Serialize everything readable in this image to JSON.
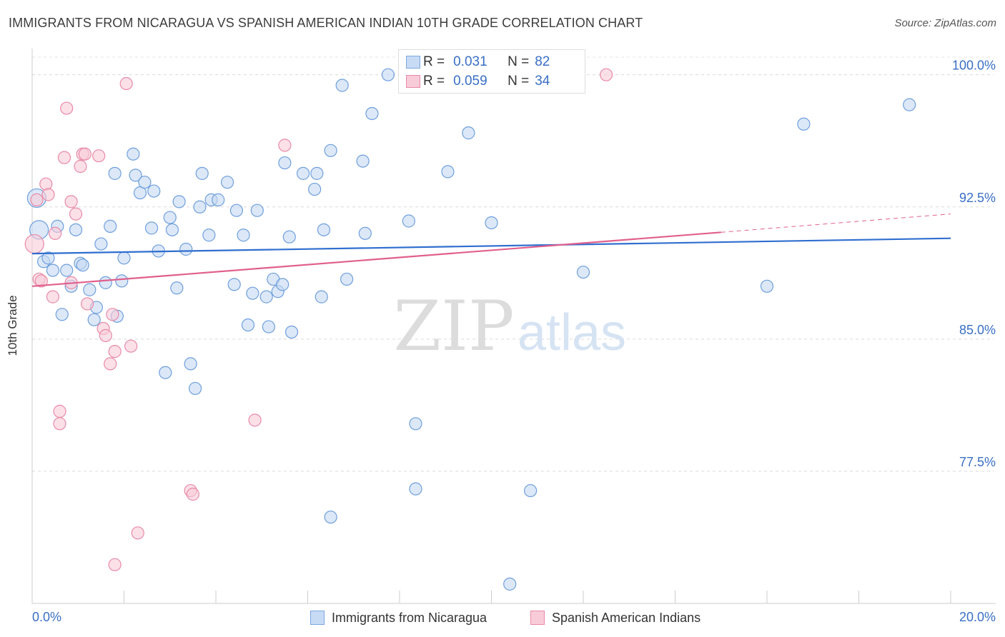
{
  "header": {
    "title": "IMMIGRANTS FROM NICARAGUA VS SPANISH AMERICAN INDIAN 10TH GRADE CORRELATION CHART",
    "source": "Source: ZipAtlas.com"
  },
  "watermark": {
    "zip": "ZIP",
    "atlas": "atlas"
  },
  "legend": {
    "rows": [
      {
        "r_label": "R =",
        "r_value": "0.031",
        "n_label": "N =",
        "n_value": "82",
        "color": "#7aa7e0",
        "fill": "#c8dbf5"
      },
      {
        "r_label": "R =",
        "r_value": "0.059",
        "n_label": "N =",
        "n_value": "34",
        "color": "#e88aa8",
        "fill": "#f8cbd9"
      }
    ]
  },
  "bottom_legend": {
    "items": [
      {
        "label": "Immigrants from Nicaragua"
      },
      {
        "label": "Spanish American Indians"
      }
    ]
  },
  "chart_data": {
    "type": "scatter",
    "title": "IMMIGRANTS FROM NICARAGUA VS SPANISH AMERICAN INDIAN 10TH GRADE CORRELATION CHART",
    "xlabel": "",
    "ylabel": "10th Grade",
    "xlim": [
      0.0,
      20.0
    ],
    "ylim": [
      70.0,
      101.0
    ],
    "x_tick_labels": [
      "0.0%",
      "20.0%"
    ],
    "y_ticks": [
      100.0,
      92.5,
      85.0,
      77.5
    ],
    "y_tick_labels": [
      "100.0%",
      "92.5%",
      "85.0%",
      "77.5%"
    ],
    "grid": true,
    "series": [
      {
        "name": "Immigrants from Nicaragua",
        "color": "#6f9fdc",
        "fill": "#c5d9f3",
        "trend": {
          "x": [
            0.0,
            20.0
          ],
          "y": [
            89.85,
            90.72
          ],
          "color": "#2f6ecf"
        },
        "points": [
          [
            0.1,
            93.0
          ],
          [
            0.15,
            91.2
          ],
          [
            0.25,
            89.4
          ],
          [
            0.35,
            89.6
          ],
          [
            0.45,
            88.9
          ],
          [
            0.55,
            91.4
          ],
          [
            0.65,
            86.4
          ],
          [
            0.75,
            88.9
          ],
          [
            0.85,
            88.0
          ],
          [
            0.95,
            91.2
          ],
          [
            1.05,
            89.3
          ],
          [
            1.1,
            89.2
          ],
          [
            1.25,
            87.8
          ],
          [
            1.35,
            86.1
          ],
          [
            1.4,
            86.8
          ],
          [
            1.5,
            90.4
          ],
          [
            1.6,
            88.2
          ],
          [
            1.7,
            91.4
          ],
          [
            1.8,
            94.4
          ],
          [
            1.85,
            86.3
          ],
          [
            1.95,
            88.3
          ],
          [
            2.0,
            89.6
          ],
          [
            2.2,
            95.5
          ],
          [
            2.25,
            94.3
          ],
          [
            2.35,
            93.3
          ],
          [
            2.45,
            93.9
          ],
          [
            2.6,
            91.3
          ],
          [
            2.65,
            93.4
          ],
          [
            2.75,
            90.0
          ],
          [
            2.9,
            83.1
          ],
          [
            3.0,
            91.9
          ],
          [
            3.05,
            91.2
          ],
          [
            3.15,
            87.9
          ],
          [
            3.2,
            92.8
          ],
          [
            3.35,
            90.1
          ],
          [
            3.45,
            83.6
          ],
          [
            3.55,
            82.2
          ],
          [
            3.65,
            92.5
          ],
          [
            3.7,
            94.4
          ],
          [
            3.85,
            90.9
          ],
          [
            3.9,
            92.9
          ],
          [
            4.05,
            92.9
          ],
          [
            4.25,
            93.9
          ],
          [
            4.4,
            88.1
          ],
          [
            4.45,
            92.3
          ],
          [
            4.6,
            90.9
          ],
          [
            4.7,
            85.8
          ],
          [
            4.8,
            87.6
          ],
          [
            4.9,
            92.3
          ],
          [
            5.1,
            87.4
          ],
          [
            5.15,
            85.7
          ],
          [
            5.25,
            88.4
          ],
          [
            5.35,
            87.7
          ],
          [
            5.45,
            88.1
          ],
          [
            5.5,
            95.0
          ],
          [
            5.6,
            90.8
          ],
          [
            5.65,
            85.4
          ],
          [
            5.9,
            94.4
          ],
          [
            6.2,
            94.4
          ],
          [
            6.15,
            93.5
          ],
          [
            6.3,
            87.4
          ],
          [
            6.35,
            91.2
          ],
          [
            6.5,
            95.7
          ],
          [
            6.5,
            74.9
          ],
          [
            6.75,
            99.4
          ],
          [
            6.85,
            88.4
          ],
          [
            7.2,
            95.1
          ],
          [
            7.25,
            91.0
          ],
          [
            7.4,
            97.8
          ],
          [
            7.75,
            100.0
          ],
          [
            8.2,
            91.7
          ],
          [
            8.35,
            80.2
          ],
          [
            8.35,
            76.5
          ],
          [
            9.05,
            94.5
          ],
          [
            9.5,
            96.7
          ],
          [
            10.0,
            91.6
          ],
          [
            10.4,
            71.1
          ],
          [
            10.85,
            76.4
          ],
          [
            12.0,
            88.8
          ],
          [
            16.0,
            88.0
          ],
          [
            16.8,
            97.2
          ],
          [
            19.1,
            98.3
          ]
        ]
      },
      {
        "name": "Spanish American Indians",
        "color": "#e88aa8",
        "fill": "#f8cbd9",
        "trend": {
          "x": [
            0.0,
            15.0
          ],
          "y": [
            88.0,
            91.06
          ],
          "color": "#e0608d",
          "dashed_extension": {
            "x": [
              15.0,
              20.0
            ],
            "y": [
              91.06,
              92.1
            ]
          }
        },
        "points": [
          [
            0.05,
            90.4
          ],
          [
            0.1,
            92.9
          ],
          [
            0.15,
            88.4
          ],
          [
            0.2,
            88.3
          ],
          [
            0.3,
            93.8
          ],
          [
            0.35,
            93.2
          ],
          [
            0.45,
            87.4
          ],
          [
            0.5,
            91.0
          ],
          [
            0.6,
            80.9
          ],
          [
            0.6,
            80.2
          ],
          [
            0.7,
            95.3
          ],
          [
            0.75,
            98.1
          ],
          [
            0.85,
            92.8
          ],
          [
            0.85,
            88.2
          ],
          [
            0.95,
            92.1
          ],
          [
            1.05,
            94.8
          ],
          [
            1.1,
            95.5
          ],
          [
            1.15,
            95.5
          ],
          [
            1.2,
            87.0
          ],
          [
            1.45,
            95.4
          ],
          [
            1.55,
            85.6
          ],
          [
            1.6,
            85.2
          ],
          [
            1.7,
            83.6
          ],
          [
            1.75,
            86.4
          ],
          [
            1.8,
            84.3
          ],
          [
            1.8,
            72.2
          ],
          [
            2.05,
            99.5
          ],
          [
            2.15,
            84.6
          ],
          [
            2.3,
            74.0
          ],
          [
            3.45,
            76.4
          ],
          [
            3.5,
            76.2
          ],
          [
            4.85,
            80.4
          ],
          [
            5.5,
            96.0
          ],
          [
            12.5,
            100.0
          ]
        ]
      }
    ]
  }
}
